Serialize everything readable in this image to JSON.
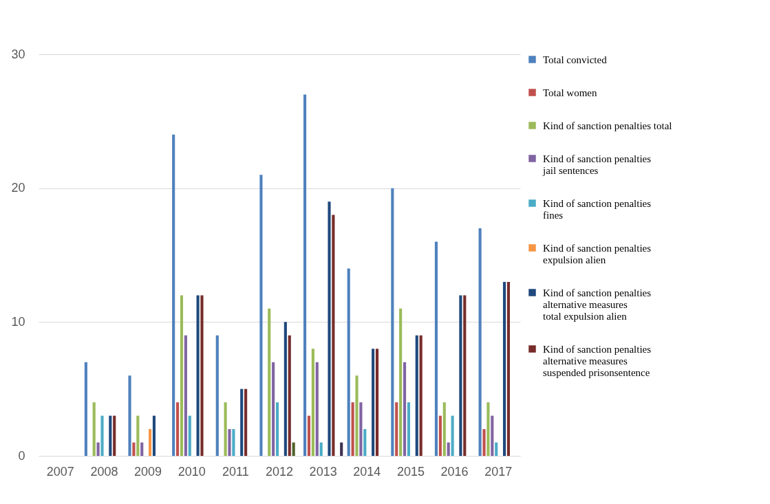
{
  "chart_data": {
    "type": "bar",
    "categories": [
      "2007",
      "2008",
      "2009",
      "2010",
      "2011",
      "2012",
      "2013",
      "2014",
      "2015",
      "2016",
      "2017"
    ],
    "series": [
      {
        "name": "Total convicted",
        "color": "#4f81bd",
        "values": [
          null,
          7,
          6,
          24,
          9,
          21,
          27,
          14,
          20,
          16,
          17
        ]
      },
      {
        "name": "Total women",
        "color": "#c0504d",
        "values": [
          null,
          null,
          1,
          4,
          null,
          null,
          3,
          4,
          4,
          3,
          2
        ]
      },
      {
        "name": "Kind of sanction penalties total",
        "color": "#9bbb59",
        "values": [
          null,
          4,
          3,
          12,
          4,
          11,
          8,
          6,
          11,
          4,
          4
        ]
      },
      {
        "name": "Kind of sanction penalties\njail sentences",
        "color": "#8064a2",
        "values": [
          null,
          1,
          1,
          9,
          2,
          7,
          7,
          4,
          7,
          1,
          3
        ]
      },
      {
        "name": "Kind of sanction penalties\nfines",
        "color": "#4bacc6",
        "values": [
          null,
          3,
          null,
          3,
          2,
          4,
          1,
          2,
          4,
          3,
          1
        ]
      },
      {
        "name": "Kind of sanction penalties\nexpulsion alien",
        "color": "#f79646",
        "values": [
          null,
          null,
          2,
          null,
          null,
          null,
          null,
          null,
          null,
          null,
          null
        ]
      },
      {
        "name": "Kind of sanction penalties\nalternative measures\ntotal expulsion alien",
        "color": "#1f497d",
        "values": [
          null,
          3,
          3,
          12,
          5,
          10,
          19,
          8,
          9,
          12,
          13
        ]
      },
      {
        "name": "Kind of sanction penalties\nalternative measures\nsuspended prisonsentence",
        "color": "#772c2a",
        "values": [
          null,
          3,
          null,
          12,
          5,
          9,
          18,
          8,
          9,
          12,
          13
        ]
      },
      {
        "color": "#4f6228",
        "values": [
          null,
          null,
          null,
          null,
          null,
          1,
          null,
          null,
          null,
          null,
          null
        ]
      },
      {
        "color": "#3f3151",
        "values": [
          null,
          null,
          null,
          null,
          null,
          null,
          1,
          null,
          null,
          null,
          null
        ]
      }
    ],
    "ylim": [
      0,
      30
    ],
    "yticks": [
      0,
      10,
      20,
      30
    ],
    "grid": "y",
    "legend": "right"
  }
}
